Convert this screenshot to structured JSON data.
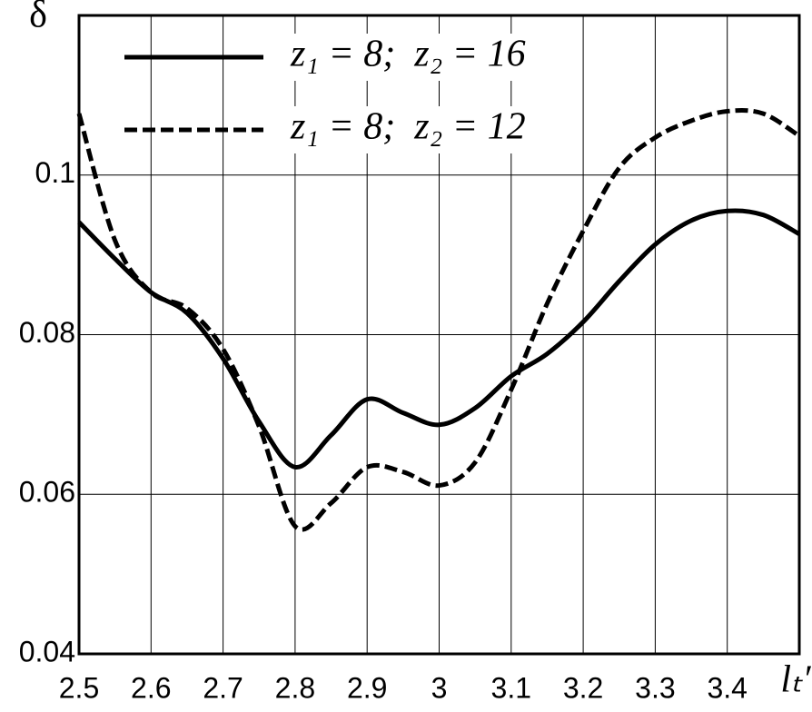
{
  "chart_data": {
    "type": "line",
    "y_label": "δ",
    "x_label": "lₜ′",
    "x": [
      2.5,
      2.55,
      2.6,
      2.65,
      2.7,
      2.75,
      2.8,
      2.85,
      2.9,
      2.95,
      3.0,
      3.05,
      3.1,
      3.15,
      3.2,
      3.25,
      3.3,
      3.35,
      3.4,
      3.45,
      3.5
    ],
    "series": [
      {
        "name": "z₁ = 8;  z₂ = 16",
        "color": "#000000",
        "dash": "solid",
        "values": [
          0.0941,
          0.0895,
          0.0853,
          0.0827,
          0.077,
          0.0691,
          0.0634,
          0.0674,
          0.0719,
          0.0702,
          0.0687,
          0.0708,
          0.0748,
          0.0776,
          0.0816,
          0.0867,
          0.0913,
          0.0943,
          0.0955,
          0.095,
          0.0926
        ]
      },
      {
        "name": "z₁ = 8;  z₂ = 12",
        "color": "#000000",
        "dash": "dashed",
        "values": [
          0.1077,
          0.0918,
          0.0853,
          0.0833,
          0.0782,
          0.0685,
          0.056,
          0.0589,
          0.0634,
          0.0628,
          0.0611,
          0.064,
          0.0731,
          0.0839,
          0.093,
          0.1009,
          0.1047,
          0.1068,
          0.108,
          0.1077,
          0.1049
        ]
      }
    ],
    "xlim": [
      2.5,
      3.5
    ],
    "ylim": [
      0.04,
      0.12
    ],
    "xticks": [
      2.5,
      2.6,
      2.7,
      2.8,
      2.9,
      3,
      3.1,
      3.2,
      3.3,
      3.4
    ],
    "yticks": [
      0.04,
      0.06,
      0.08,
      0.1
    ],
    "grid": true,
    "legend": "top"
  }
}
